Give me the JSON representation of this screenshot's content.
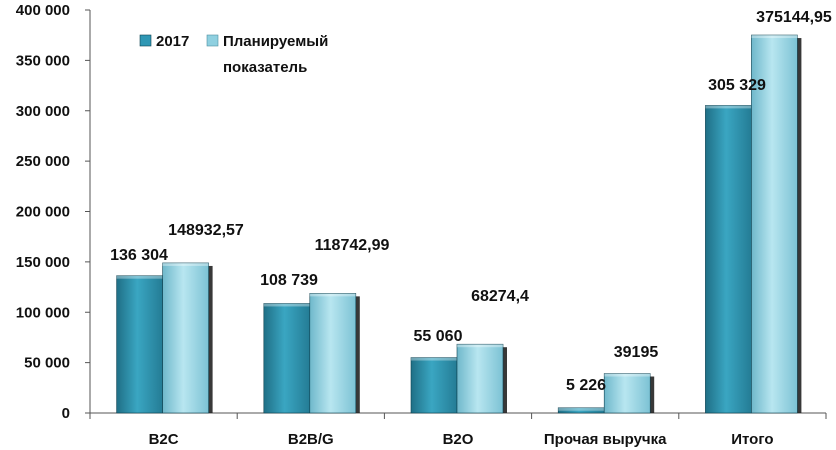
{
  "chart_data": {
    "type": "bar",
    "categories": [
      "B2C",
      "B2B/G",
      "B2O",
      "Прочая выручка",
      "Итого"
    ],
    "series": [
      {
        "name": "2017",
        "values": [
          136304,
          108739,
          55060,
          5226,
          305329
        ],
        "labels": [
          "136 304",
          "108 739",
          "55 060",
          "5 226",
          "305 329"
        ],
        "color": "#2f97b4"
      },
      {
        "name": "Планируемый показатель",
        "legend_lines": [
          "Планируемый",
          "показатель"
        ],
        "values": [
          148932.57,
          118742.99,
          68274.4,
          39195,
          375144.95
        ],
        "labels": [
          "148932,57",
          "118742,99",
          "68274,4",
          "39195",
          "375144,95"
        ],
        "color": "#8fd0e0"
      }
    ],
    "yticks": [
      "0",
      "50 000",
      "100 000",
      "150 000",
      "200 000",
      "250 000",
      "300 000",
      "350 000",
      "400 000"
    ],
    "ylim": [
      0,
      400000
    ],
    "grid": false,
    "legend_position": "top-left"
  }
}
